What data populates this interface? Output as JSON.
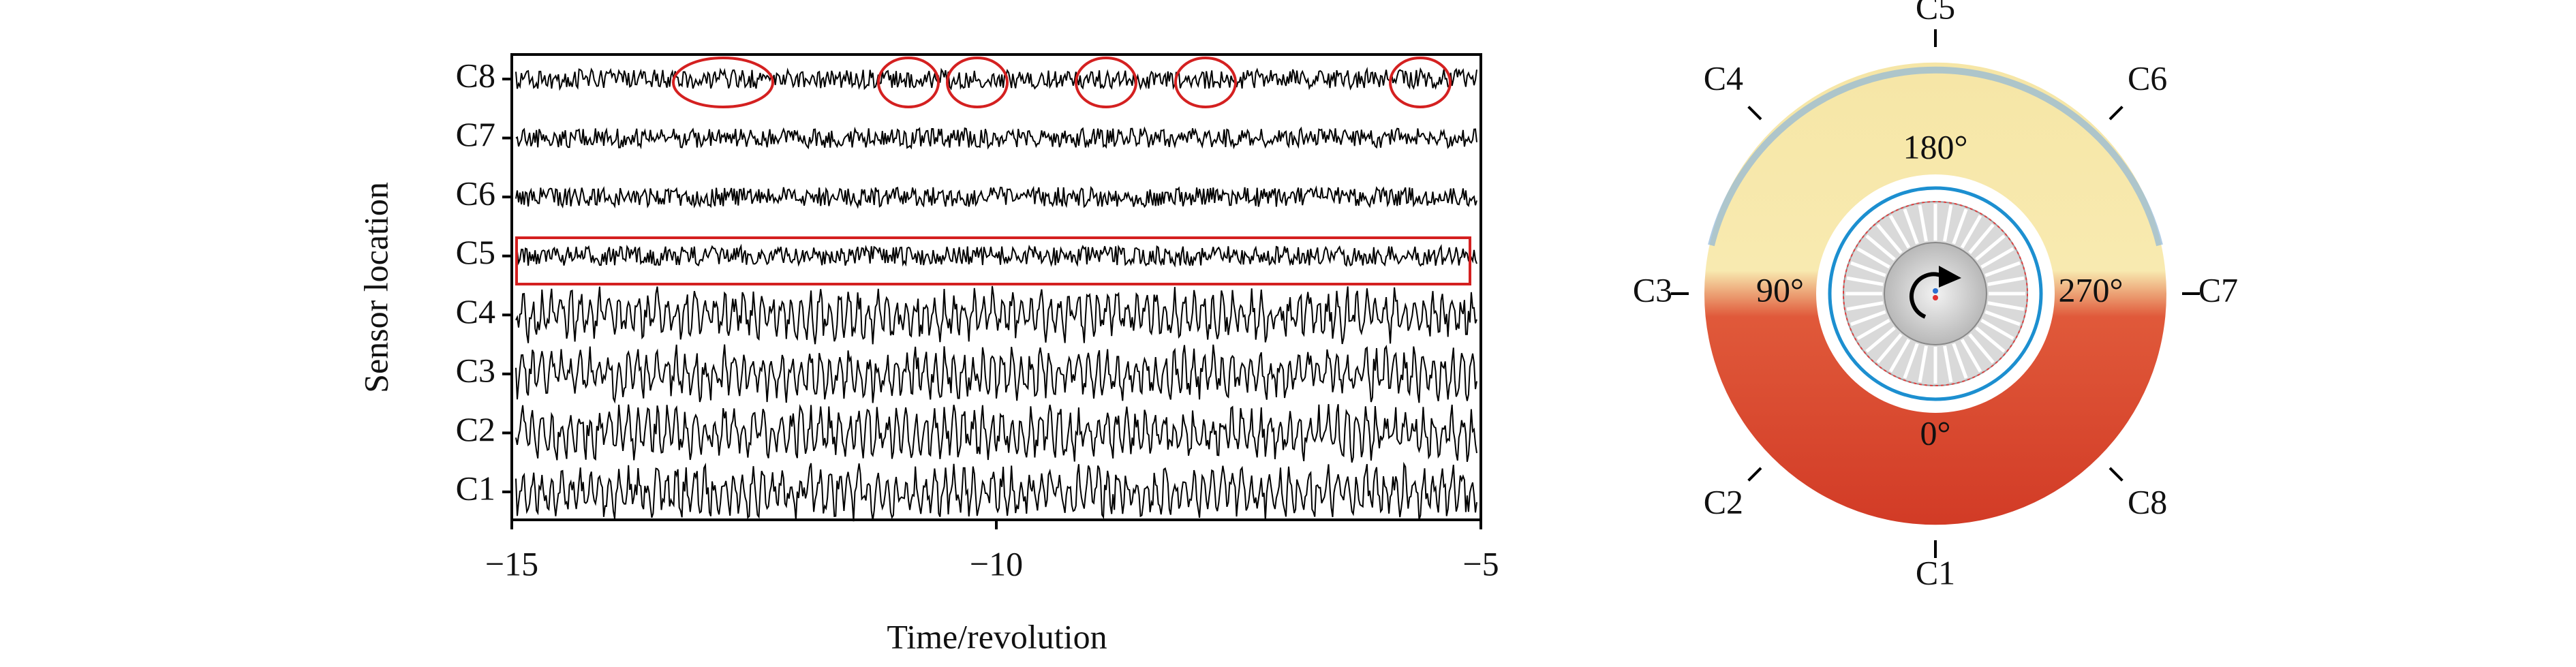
{
  "chart_data": {
    "type": "line",
    "xlabel": "Time/revolution",
    "ylabel": "Sensor location",
    "categories": [
      "C1",
      "C2",
      "C3",
      "C4",
      "C5",
      "C6",
      "C7",
      "C8"
    ],
    "xlim": [
      -15,
      -5
    ],
    "xticks": [
      {
        "value": -15,
        "label": "−15"
      },
      {
        "value": -10,
        "label": "−10"
      },
      {
        "value": -5,
        "label": "−5"
      }
    ]
  },
  "ring": {
    "sensors": [
      "C1",
      "C2",
      "C3",
      "C4",
      "C5",
      "C6",
      "C7",
      "C8"
    ],
    "angle_labels": [
      "0°",
      "90°",
      "180°",
      "270°"
    ]
  }
}
